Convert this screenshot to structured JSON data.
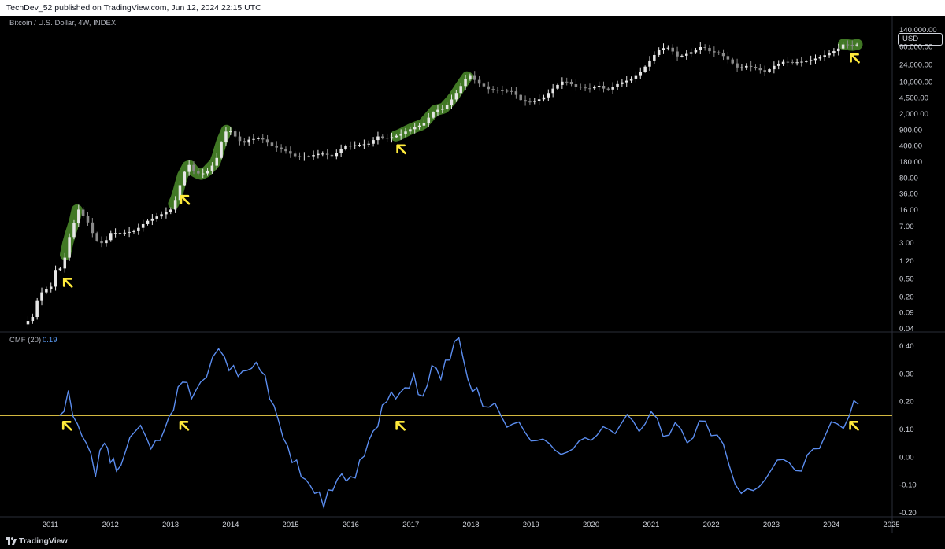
{
  "header": {
    "published_line": "TechDev_52 published on TradingView.com, Jun 12, 2024 22:15 UTC"
  },
  "main_pane": {
    "symbol_label": "Bitcoin / U.S. Dollar, 4W, INDEX",
    "currency_button": "USD"
  },
  "indicator_pane": {
    "name": "CMF (20)",
    "value": "0.19"
  },
  "footer": {
    "brand": "TradingView"
  },
  "colors": {
    "background": "#000000",
    "candle_up": "#e6e6e6",
    "candle_down": "#8a8a8a",
    "highlight": "#4c8d2b",
    "arrow": "#ffeb3b",
    "cmf_line": "#5b8def",
    "threshold_line": "#f0d24a"
  },
  "chart_data": [
    {
      "type": "candlestick",
      "title": "Bitcoin / U.S. Dollar, 4W, INDEX",
      "y_scale": "log",
      "ylim": [
        0.04,
        140000
      ],
      "y_ticks": [
        "140,000.00",
        "60,000.00",
        "24,000.00",
        "10,000.00",
        "4,500.00",
        "2,000.00",
        "900.00",
        "400.00",
        "180.00",
        "80.00",
        "36.00",
        "16.00",
        "7.00",
        "3.00",
        "1.20",
        "0.50",
        "0.20",
        "0.09",
        "0.04"
      ],
      "x_ticks": [
        "2011",
        "2012",
        "2013",
        "2014",
        "2015",
        "2016",
        "2017",
        "2018",
        "2019",
        "2020",
        "2021",
        "2022",
        "2023",
        "2024",
        "2025"
      ],
      "x_range": [
        2010.45,
        2025.0
      ],
      "close_path": [
        [
          2010.55,
          0.05
        ],
        [
          2010.7,
          0.07
        ],
        [
          2010.8,
          0.2
        ],
        [
          2010.9,
          0.3
        ],
        [
          2011.0,
          0.3
        ],
        [
          2011.1,
          0.9
        ],
        [
          2011.2,
          0.8
        ],
        [
          2011.3,
          3.5
        ],
        [
          2011.4,
          9.0
        ],
        [
          2011.45,
          18.0
        ],
        [
          2011.5,
          14.0
        ],
        [
          2011.6,
          10.0
        ],
        [
          2011.7,
          5.0
        ],
        [
          2011.8,
          3.0
        ],
        [
          2011.9,
          3.0
        ],
        [
          2012.0,
          5.0
        ],
        [
          2012.2,
          5.0
        ],
        [
          2012.4,
          5.5
        ],
        [
          2012.6,
          9.0
        ],
        [
          2012.8,
          12.0
        ],
        [
          2013.0,
          16.0
        ],
        [
          2013.1,
          30.0
        ],
        [
          2013.2,
          90.0
        ],
        [
          2013.3,
          160.0
        ],
        [
          2013.4,
          110.0
        ],
        [
          2013.5,
          95.0
        ],
        [
          2013.6,
          110.0
        ],
        [
          2013.75,
          180.0
        ],
        [
          2013.85,
          500.0
        ],
        [
          2013.95,
          1000.0
        ],
        [
          2014.05,
          700.0
        ],
        [
          2014.2,
          450.0
        ],
        [
          2014.3,
          550.0
        ],
        [
          2014.5,
          600.0
        ],
        [
          2014.7,
          400.0
        ],
        [
          2014.9,
          320.0
        ],
        [
          2015.1,
          230.0
        ],
        [
          2015.3,
          240.0
        ],
        [
          2015.5,
          280.0
        ],
        [
          2015.7,
          240.0
        ],
        [
          2015.9,
          400.0
        ],
        [
          2016.1,
          420.0
        ],
        [
          2016.3,
          450.0
        ],
        [
          2016.45,
          650.0
        ],
        [
          2016.6,
          580.0
        ],
        [
          2016.8,
          700.0
        ],
        [
          2017.0,
          950.0
        ],
        [
          2017.2,
          1200.0
        ],
        [
          2017.4,
          2400.0
        ],
        [
          2017.55,
          2700.0
        ],
        [
          2017.7,
          4500.0
        ],
        [
          2017.85,
          9000.0
        ],
        [
          2017.97,
          15000.0
        ],
        [
          2018.1,
          10000.0
        ],
        [
          2018.3,
          7000.0
        ],
        [
          2018.5,
          6500.0
        ],
        [
          2018.7,
          6300.0
        ],
        [
          2018.85,
          3800.0
        ],
        [
          2019.0,
          3700.0
        ],
        [
          2019.2,
          4500.0
        ],
        [
          2019.4,
          8000.0
        ],
        [
          2019.55,
          11000.0
        ],
        [
          2019.75,
          8000.0
        ],
        [
          2019.95,
          7200.0
        ],
        [
          2020.15,
          8500.0
        ],
        [
          2020.25,
          6500.0
        ],
        [
          2020.45,
          9300.0
        ],
        [
          2020.65,
          11500.0
        ],
        [
          2020.85,
          18000.0
        ],
        [
          2021.0,
          33000.0
        ],
        [
          2021.15,
          55000.0
        ],
        [
          2021.3,
          57000.0
        ],
        [
          2021.45,
          35000.0
        ],
        [
          2021.55,
          40000.0
        ],
        [
          2021.7,
          47000.0
        ],
        [
          2021.85,
          62000.0
        ],
        [
          2021.98,
          47000.0
        ],
        [
          2022.15,
          42000.0
        ],
        [
          2022.3,
          30000.0
        ],
        [
          2022.45,
          20000.0
        ],
        [
          2022.6,
          23000.0
        ],
        [
          2022.75,
          20000.0
        ],
        [
          2022.9,
          16500.0
        ],
        [
          2023.05,
          23000.0
        ],
        [
          2023.2,
          28000.0
        ],
        [
          2023.4,
          27000.0
        ],
        [
          2023.6,
          29000.0
        ],
        [
          2023.8,
          35000.0
        ],
        [
          2023.95,
          42000.0
        ],
        [
          2024.1,
          52000.0
        ],
        [
          2024.2,
          68000.0
        ],
        [
          2024.35,
          64000.0
        ],
        [
          2024.45,
          68000.0
        ]
      ],
      "highlight_ranges": [
        [
          2011.25,
          2011.45
        ],
        [
          2013.05,
          2013.95
        ],
        [
          2016.75,
          2017.97
        ],
        [
          2024.2,
          2024.45
        ]
      ],
      "arrow_markers": [
        2011.2,
        2013.15,
        2016.75,
        2024.3
      ]
    },
    {
      "type": "line",
      "series": [
        {
          "name": "CMF (20)"
        }
      ],
      "ylim": [
        -0.2,
        0.4
      ],
      "y_ticks": [
        "0.40",
        "0.30",
        "0.20",
        "0.10",
        "0.00",
        "-0.10",
        "-0.20"
      ],
      "threshold": 0.15,
      "x": [
        2011.15,
        2011.3,
        2011.45,
        2011.6,
        2011.75,
        2011.9,
        2012.0,
        2012.1,
        2012.25,
        2012.4,
        2012.6,
        2012.75,
        2012.9,
        2013.05,
        2013.2,
        2013.35,
        2013.5,
        2013.7,
        2013.9,
        2014.05,
        2014.2,
        2014.35,
        2014.5,
        2014.65,
        2014.8,
        2014.95,
        2015.1,
        2015.25,
        2015.4,
        2015.55,
        2015.7,
        2015.85,
        2016.0,
        2016.15,
        2016.3,
        2016.45,
        2016.6,
        2016.75,
        2016.9,
        2017.05,
        2017.2,
        2017.35,
        2017.5,
        2017.65,
        2017.8,
        2017.95,
        2018.1,
        2018.3,
        2018.5,
        2018.7,
        2018.9,
        2019.1,
        2019.3,
        2019.5,
        2019.7,
        2019.9,
        2020.1,
        2020.3,
        2020.5,
        2020.7,
        2020.9,
        2021.1,
        2021.3,
        2021.5,
        2021.7,
        2021.9,
        2022.1,
        2022.3,
        2022.5,
        2022.7,
        2022.9,
        2023.1,
        2023.3,
        2023.5,
        2023.7,
        2023.9,
        2024.1,
        2024.3,
        2024.45
      ],
      "values": [
        0.15,
        0.24,
        0.12,
        0.05,
        -0.07,
        0.05,
        -0.02,
        -0.05,
        0.02,
        0.09,
        0.07,
        0.06,
        0.1,
        0.17,
        0.27,
        0.21,
        0.27,
        0.36,
        0.36,
        0.33,
        0.31,
        0.32,
        0.31,
        0.21,
        0.13,
        0.04,
        -0.01,
        -0.08,
        -0.13,
        -0.18,
        -0.12,
        -0.06,
        -0.07,
        -0.01,
        0.06,
        0.11,
        0.2,
        0.21,
        0.25,
        0.3,
        0.22,
        0.33,
        0.28,
        0.35,
        0.43,
        0.28,
        0.25,
        0.18,
        0.15,
        0.12,
        0.09,
        0.06,
        0.05,
        0.01,
        0.03,
        0.07,
        0.08,
        0.1,
        0.12,
        0.13,
        0.12,
        0.14,
        0.08,
        0.1,
        0.07,
        0.13,
        0.08,
        -0.03,
        -0.13,
        -0.12,
        -0.08,
        -0.01,
        -0.02,
        -0.05,
        0.03,
        0.08,
        0.12,
        0.15,
        0.19
      ]
    }
  ]
}
